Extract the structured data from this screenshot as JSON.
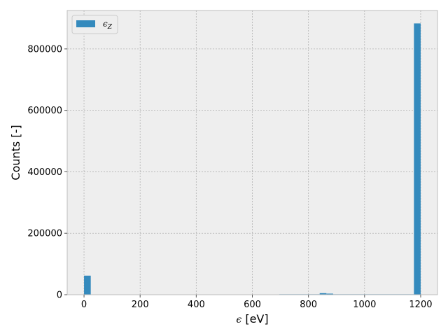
{
  "chart_data": {
    "type": "bar",
    "xlabel_symbol": "ϵ",
    "xlabel_unit": " [eV]",
    "ylabel": "Counts [-]",
    "xlim": [
      -60,
      1260
    ],
    "ylim": [
      0,
      925000
    ],
    "x_ticks": [
      0,
      200,
      400,
      600,
      800,
      1000,
      1200
    ],
    "y_ticks": [
      0,
      200000,
      400000,
      600000,
      800000
    ],
    "grid": true,
    "legend": {
      "position": "top-left",
      "label_main": "ϵ",
      "label_sub": "Z"
    },
    "colors": {
      "bar": "#348abd",
      "background": "#eeeeee",
      "grid": "#b2b2b2",
      "frame": "#bcbcbc"
    },
    "bins": [
      {
        "x0": 0,
        "x1": 24,
        "count": 62000
      },
      {
        "x0": 696,
        "x1": 840,
        "count": 1500
      },
      {
        "x0": 840,
        "x1": 864,
        "count": 5000
      },
      {
        "x0": 864,
        "x1": 888,
        "count": 3500
      },
      {
        "x0": 888,
        "x1": 1176,
        "count": 1500
      },
      {
        "x0": 1176,
        "x1": 1200,
        "count": 883000
      }
    ]
  }
}
